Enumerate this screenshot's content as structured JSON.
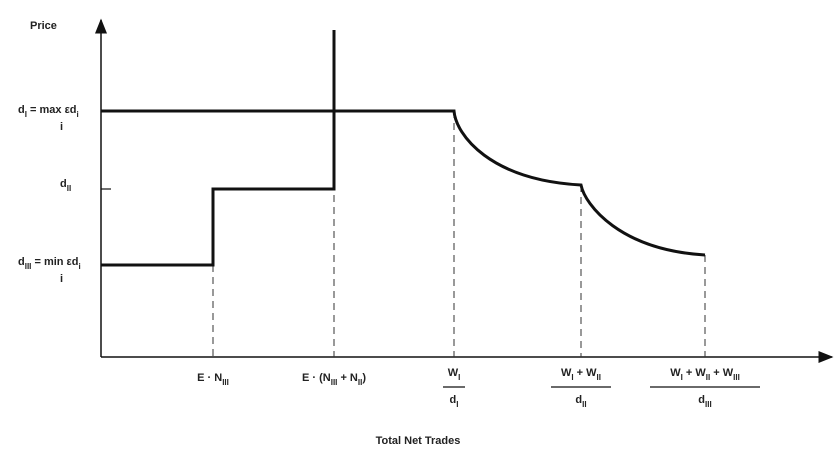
{
  "axis": {
    "y_title": "Price",
    "x_title": "Total Net Trades"
  },
  "y_labels": [
    {
      "parts": [
        {
          "t": "d"
        },
        {
          "t": "I",
          "sub": true
        },
        {
          "t": " = max εd"
        },
        {
          "t": "i",
          "sub": true
        }
      ],
      "under": "i"
    },
    {
      "parts": [
        {
          "t": "d"
        },
        {
          "t": "II",
          "sub": true
        }
      ]
    },
    {
      "parts": [
        {
          "t": "d"
        },
        {
          "t": "III",
          "sub": true
        },
        {
          "t": " = min εd"
        },
        {
          "t": "i",
          "sub": true
        }
      ],
      "under": "i"
    }
  ],
  "x_labels": [
    {
      "parts": [
        {
          "t": "E · N"
        },
        {
          "t": "III",
          "sub": true
        }
      ]
    },
    {
      "parts": [
        {
          "t": "E · (N"
        },
        {
          "t": "III",
          "sub": true
        },
        {
          "t": " + N"
        },
        {
          "t": "II",
          "sub": true
        },
        {
          "t": ")"
        }
      ]
    },
    {
      "num": [
        {
          "t": "W"
        },
        {
          "t": "I",
          "sub": true
        }
      ],
      "den": [
        {
          "t": "d"
        },
        {
          "t": "I",
          "sub": true
        }
      ]
    },
    {
      "num": [
        {
          "t": "W"
        },
        {
          "t": "I",
          "sub": true
        },
        {
          "t": " + W"
        },
        {
          "t": "II",
          "sub": true
        }
      ],
      "den": [
        {
          "t": "d"
        },
        {
          "t": "II",
          "sub": true
        }
      ]
    },
    {
      "num": [
        {
          "t": "W"
        },
        {
          "t": "I",
          "sub": true
        },
        {
          "t": " + W"
        },
        {
          "t": "II",
          "sub": true
        },
        {
          "t": " + W"
        },
        {
          "t": "III",
          "sub": true
        }
      ],
      "den": [
        {
          "t": "d"
        },
        {
          "t": "III",
          "sub": true
        }
      ]
    }
  ]
}
